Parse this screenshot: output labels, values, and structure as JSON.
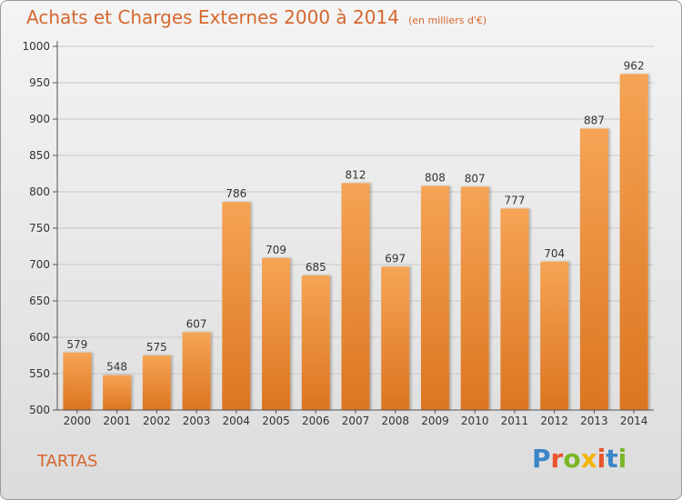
{
  "header": {
    "title": "Achats et Charges Externes 2000 à 2014",
    "unit": "(en milliers d'€)"
  },
  "footer": {
    "place": "TARTAS",
    "brand": "Proxiti"
  },
  "colors": {
    "title": "#d5672e",
    "bar_top": "#f5a455",
    "bar_bottom": "#dc7520",
    "grid": "#c8c8c8"
  },
  "brand_letter_colors": [
    "#3a86c8",
    "#e9542c",
    "#7ab728",
    "#f4b500",
    "#e9542c",
    "#3a86c8",
    "#7ab728"
  ],
  "chart_data": {
    "type": "bar",
    "title": "Achats et Charges Externes 2000 à 2014",
    "xlabel": "",
    "ylabel": "",
    "categories": [
      "2000",
      "2001",
      "2002",
      "2003",
      "2004",
      "2005",
      "2006",
      "2007",
      "2008",
      "2009",
      "2010",
      "2011",
      "2012",
      "2013",
      "2014"
    ],
    "values": [
      579,
      548,
      575,
      607,
      786,
      709,
      685,
      812,
      697,
      808,
      807,
      777,
      704,
      887,
      962
    ],
    "ylim": [
      500,
      1000
    ],
    "yticks": [
      500,
      550,
      600,
      650,
      700,
      750,
      800,
      850,
      900,
      950,
      1000
    ],
    "grid": true,
    "data_labels": true
  }
}
